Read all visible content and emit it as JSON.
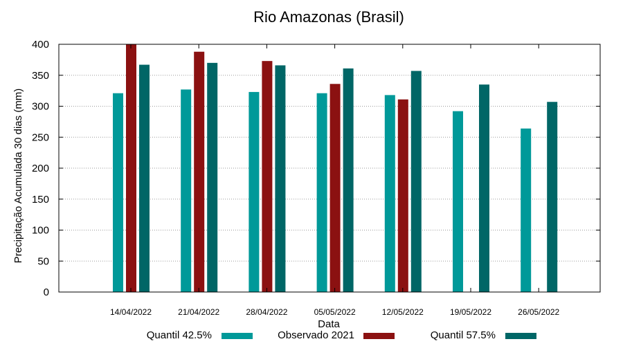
{
  "chart_data": {
    "type": "bar",
    "title": "Rio Amazonas (Brasil)",
    "xlabel": "Data",
    "ylabel": "Precipitação Acumulada 30 dias (mm)",
    "ylim": [
      0,
      400
    ],
    "yticks": [
      0,
      50,
      100,
      150,
      200,
      250,
      300,
      350,
      400
    ],
    "ytick_labels": [
      "0",
      "50",
      "100",
      "150",
      "200",
      "250",
      "300",
      "350",
      "400"
    ],
    "grid": true,
    "legend_position": "bottom",
    "categories": [
      "14/04/2022",
      "21/04/2022",
      "28/04/2022",
      "05/05/2022",
      "12/05/2022",
      "19/05/2022",
      "26/05/2022"
    ],
    "series": [
      {
        "name": "Quantil 42.5%",
        "color": "#009999",
        "values": [
          321,
          327,
          323,
          321,
          318,
          292,
          264
        ]
      },
      {
        "name": "Observado 2021",
        "color": "#8b1111",
        "values": [
          400,
          388,
          373,
          336,
          311,
          null,
          null
        ]
      },
      {
        "name": "Quantil 57.5%",
        "color": "#006666",
        "values": [
          367,
          370,
          366,
          361,
          357,
          335,
          307
        ]
      }
    ]
  }
}
